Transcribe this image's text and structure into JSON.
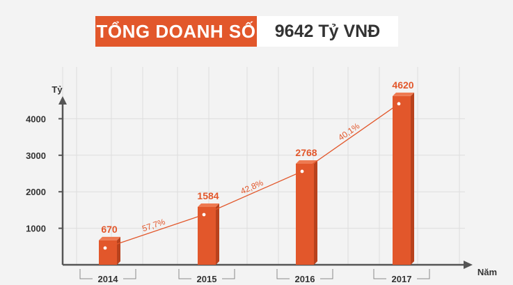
{
  "header": {
    "label": "TỔNG DOANH SỐ",
    "value": "9642 Tỷ VNĐ"
  },
  "colors": {
    "accent": "#e2572b",
    "accent_dark": "#b8421d",
    "grid": "#dddddd",
    "axis": "#555555"
  },
  "chart_data": {
    "type": "bar",
    "title": "",
    "xlabel": "Năm",
    "ylabel": "Tỷ",
    "categories": [
      "2014",
      "2015",
      "2016",
      "2017"
    ],
    "values": [
      670,
      1584,
      2768,
      4620
    ],
    "value_labels": [
      "670",
      "1584",
      "2768",
      "4620"
    ],
    "yticks": [
      1000,
      2000,
      3000,
      4000
    ],
    "ytick_labels": [
      "1000",
      "2000",
      "3000",
      "4000"
    ],
    "ylim": [
      0,
      4700
    ],
    "growth_labels": [
      "57,7%",
      "42,8%",
      "40,1%"
    ],
    "trend_line": true,
    "grid": true
  }
}
